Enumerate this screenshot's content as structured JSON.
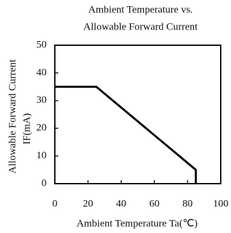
{
  "chart_data": {
    "type": "line",
    "title": [
      "Ambient Temperature vs.",
      "Allowable Forward Current"
    ],
    "xlabel": "Ambient Temperature Ta(℃)",
    "ylabel": [
      "Allowable Forward Current",
      "IF(mA)"
    ],
    "x": [
      0,
      25,
      85,
      85
    ],
    "series": [
      {
        "color": "#000000",
        "values": [
          35,
          35,
          5,
          0
        ]
      }
    ],
    "xlim": [
      0,
      100
    ],
    "xticks": [
      0,
      20,
      40,
      60,
      80,
      100
    ],
    "ylim": [
      0,
      50
    ],
    "yticks": [
      0,
      10,
      20,
      30,
      40,
      50
    ]
  }
}
